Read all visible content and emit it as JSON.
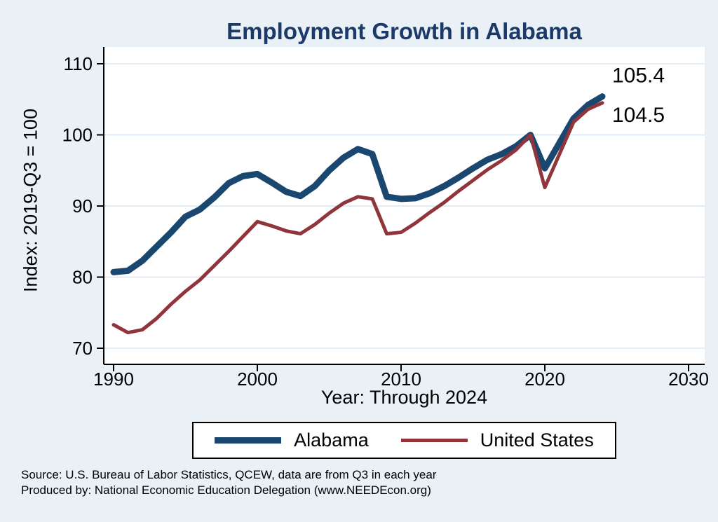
{
  "page": {
    "footer_line1": "Source: U.S. Bureau of Labor Statistics, QCEW, data are from Q3 in each year",
    "footer_line2": "Produced by: National Economic Education Delegation (www.NEEDEcon.org)"
  },
  "colors": {
    "background": "#e9f1f7",
    "title": "#1b3a6a",
    "plot_background": "#ffffff",
    "grid": "#d9e5f0",
    "axis": "#000000"
  },
  "chart_data": {
    "type": "line",
    "title": "Employment Growth in Alabama",
    "xlabel": "Year: Through 2024",
    "ylabel": "Index: 2019-Q3 = 100",
    "x_ticks": [
      1990,
      2000,
      2010,
      2020,
      2030
    ],
    "y_ticks": [
      70,
      80,
      90,
      100,
      110
    ],
    "xlim": [
      1988,
      2031
    ],
    "ylim": [
      68,
      112
    ],
    "grid": "horizontal",
    "legend_position": "bottom",
    "years": [
      1990,
      1991,
      1992,
      1993,
      1994,
      1995,
      1996,
      1997,
      1998,
      1999,
      2000,
      2001,
      2002,
      2003,
      2004,
      2005,
      2006,
      2007,
      2008,
      2009,
      2010,
      2011,
      2012,
      2013,
      2014,
      2015,
      2016,
      2017,
      2018,
      2019,
      2020,
      2021,
      2022,
      2023,
      2024
    ],
    "series": [
      {
        "name": "Alabama",
        "color": "#1a476f",
        "width": 9,
        "end_label": "105.4",
        "values": [
          80.7,
          80.9,
          82.3,
          84.3,
          86.3,
          88.5,
          89.5,
          91.2,
          93.2,
          94.2,
          94.5,
          93.3,
          92.0,
          91.4,
          92.8,
          95.0,
          96.8,
          98.0,
          97.3,
          91.3,
          91.0,
          91.1,
          91.8,
          92.8,
          94.0,
          95.3,
          96.5,
          97.3,
          98.4,
          100.0,
          95.3,
          98.8,
          102.3,
          104.2,
          105.4
        ]
      },
      {
        "name": "United States",
        "color": "#90353b",
        "width": 5,
        "end_label": "104.5",
        "values": [
          73.3,
          72.2,
          72.6,
          74.2,
          76.2,
          78.0,
          79.6,
          81.6,
          83.6,
          85.7,
          87.8,
          87.2,
          86.5,
          86.1,
          87.4,
          89.0,
          90.4,
          91.3,
          91.0,
          86.1,
          86.3,
          87.6,
          89.1,
          90.5,
          92.1,
          93.6,
          95.1,
          96.4,
          97.9,
          100.0,
          92.6,
          97.2,
          101.8,
          103.6,
          104.5
        ]
      }
    ]
  }
}
